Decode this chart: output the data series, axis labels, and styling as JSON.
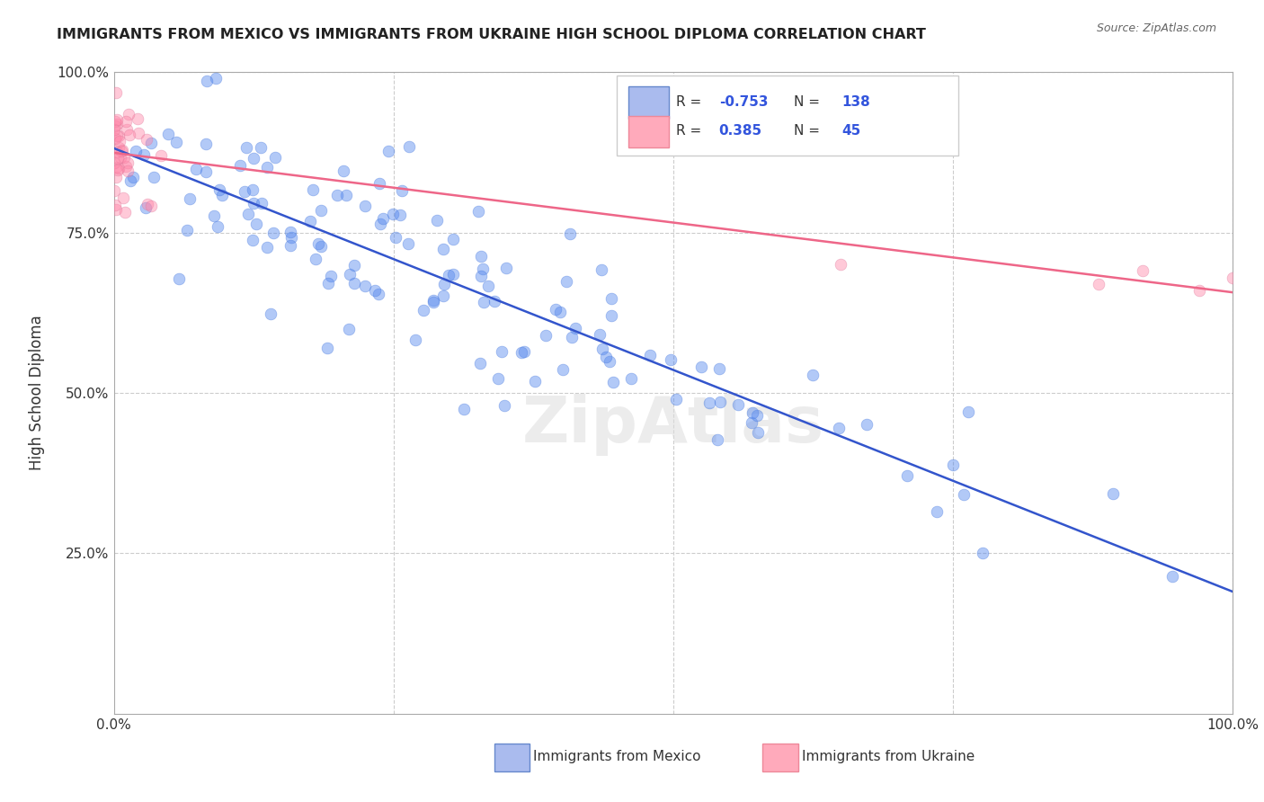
{
  "title": "IMMIGRANTS FROM MEXICO VS IMMIGRANTS FROM UKRAINE HIGH SCHOOL DIPLOMA CORRELATION CHART",
  "source": "Source: ZipAtlas.com",
  "ylabel": "High School Diploma",
  "mexico_color": "#5588ee",
  "ukraine_color": "#ff88aa",
  "mexico_line_color": "#3355cc",
  "ukraine_line_color": "#ee6688",
  "mexico_marker_edge": "#4477dd",
  "ukraine_marker_edge": "#dd7799",
  "watermark": "ZipAtlas",
  "background_color": "#ffffff",
  "grid_color": "#cccccc",
  "R_mexico": "-0.753",
  "N_mexico": "138",
  "R_ukraine": "0.385",
  "N_ukraine": "45",
  "label_mexico": "Immigrants from Mexico",
  "label_ukraine": "Immigrants from Ukraine",
  "legend_box_color": "#aabbee",
  "legend_box_edge_mexico": "#6688cc",
  "legend_box2_color": "#ffaabb",
  "legend_box_edge_ukraine": "#ee8899",
  "R_N_color": "#3355dd",
  "text_color": "#333333",
  "source_color": "#666666"
}
